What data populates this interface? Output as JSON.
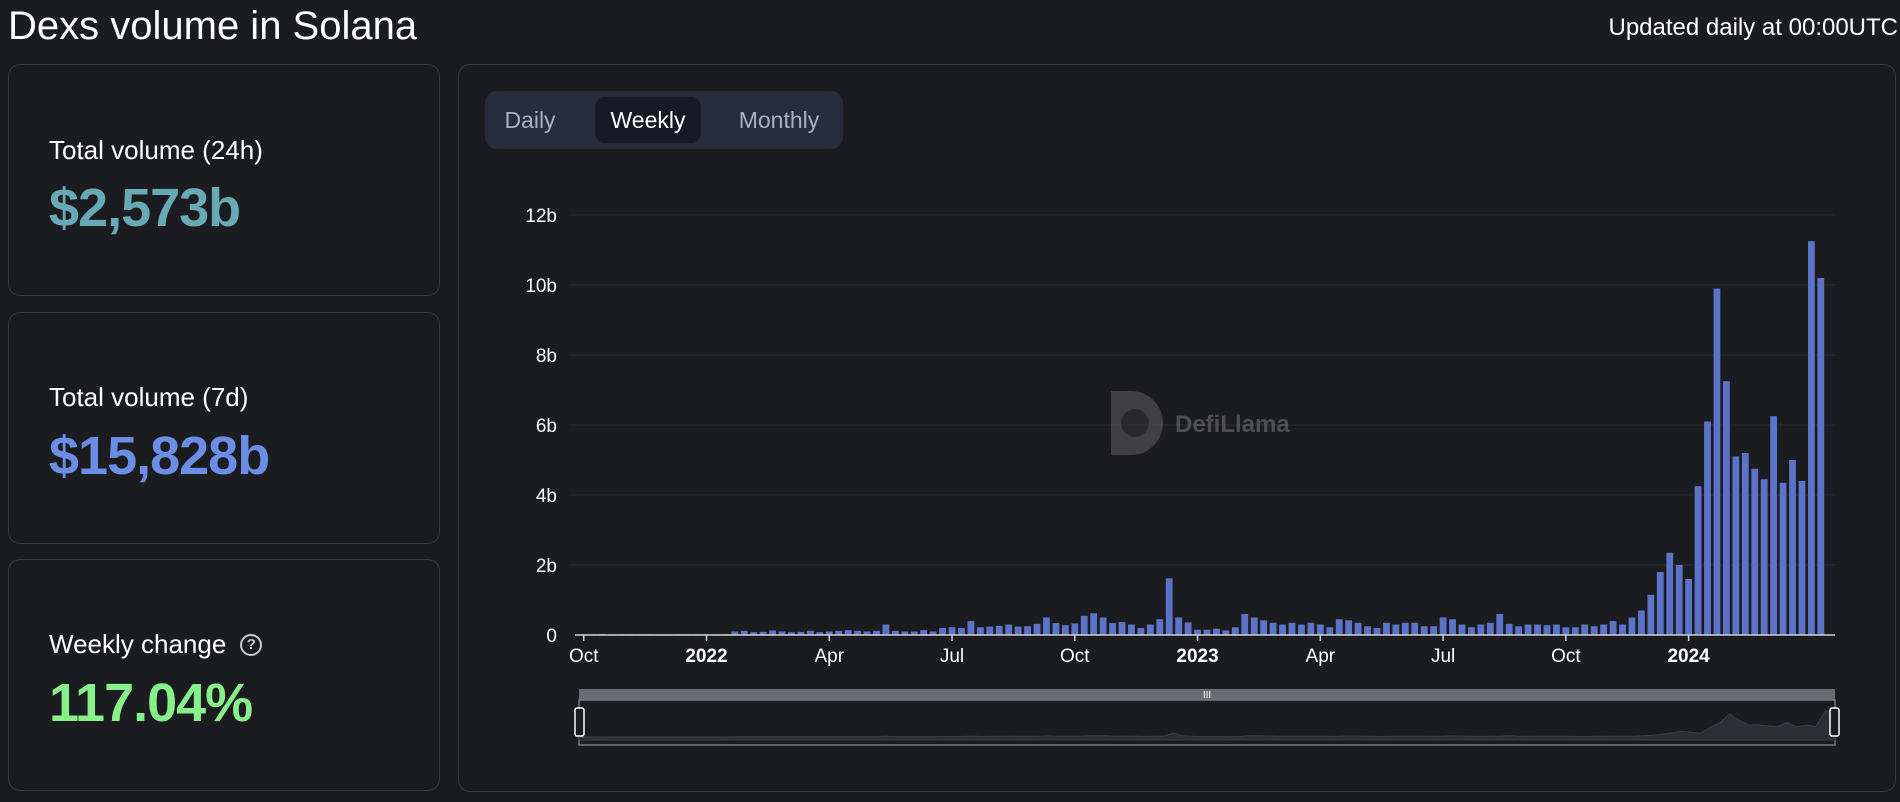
{
  "header": {
    "title": "Dexs volume in Solana",
    "updated": "Updated daily at 00:00UTC"
  },
  "stats": {
    "volume_24h": {
      "label": "Total volume (24h)",
      "value": "$2,573b",
      "color": "#67a9b4"
    },
    "volume_7d": {
      "label": "Total volume (7d)",
      "value": "$15,828b",
      "color": "#6a8ee6"
    },
    "weekly_change": {
      "label": "Weekly change",
      "value": "117.04%",
      "color": "#86f089",
      "help_icon": "question-circle-icon"
    }
  },
  "tabs": [
    {
      "label": "Daily",
      "active": false
    },
    {
      "label": "Weekly",
      "active": true
    },
    {
      "label": "Monthly",
      "active": false
    }
  ],
  "watermark": {
    "text": "DefiLlama",
    "icon": "llama-logo-icon"
  },
  "chart_data": {
    "type": "bar",
    "title": "",
    "xlabel": "",
    "ylabel": "",
    "y_unit": "b",
    "ylim": [
      0,
      12
    ],
    "y_ticks": [
      "0",
      "2b",
      "4b",
      "6b",
      "8b",
      "10b",
      "12b"
    ],
    "x_ticks": [
      {
        "label": "Oct",
        "bold": false,
        "index": 0
      },
      {
        "label": "2022",
        "bold": true,
        "index": 13
      },
      {
        "label": "Apr",
        "bold": false,
        "index": 26
      },
      {
        "label": "Jul",
        "bold": false,
        "index": 39
      },
      {
        "label": "Oct",
        "bold": false,
        "index": 52
      },
      {
        "label": "2023",
        "bold": true,
        "index": 65
      },
      {
        "label": "Apr",
        "bold": false,
        "index": 78
      },
      {
        "label": "Jul",
        "bold": false,
        "index": 91
      },
      {
        "label": "Oct",
        "bold": false,
        "index": 104
      },
      {
        "label": "2024",
        "bold": true,
        "index": 117
      }
    ],
    "grid": true,
    "bar_color": "#5d73c8",
    "series": [
      {
        "values": [
          0.02,
          0.02,
          0.03,
          0.02,
          0.02,
          0.02,
          0.02,
          0.02,
          0.02,
          0.02,
          0.02,
          0.02,
          0.02,
          0.02,
          0.02,
          0.02,
          0.1,
          0.12,
          0.08,
          0.09,
          0.13,
          0.1,
          0.08,
          0.09,
          0.12,
          0.08,
          0.1,
          0.12,
          0.14,
          0.12,
          0.1,
          0.12,
          0.3,
          0.12,
          0.1,
          0.1,
          0.14,
          0.1,
          0.2,
          0.22,
          0.2,
          0.4,
          0.22,
          0.24,
          0.26,
          0.3,
          0.24,
          0.25,
          0.32,
          0.5,
          0.34,
          0.28,
          0.33,
          0.55,
          0.62,
          0.5,
          0.34,
          0.37,
          0.3,
          0.2,
          0.3,
          0.45,
          1.62,
          0.5,
          0.36,
          0.15,
          0.15,
          0.18,
          0.13,
          0.22,
          0.6,
          0.5,
          0.42,
          0.35,
          0.3,
          0.35,
          0.3,
          0.35,
          0.3,
          0.22,
          0.45,
          0.42,
          0.35,
          0.25,
          0.2,
          0.35,
          0.3,
          0.35,
          0.35,
          0.25,
          0.25,
          0.5,
          0.45,
          0.3,
          0.22,
          0.3,
          0.35,
          0.6,
          0.32,
          0.25,
          0.3,
          0.3,
          0.28,
          0.3,
          0.22,
          0.22,
          0.3,
          0.25,
          0.3,
          0.4,
          0.3,
          0.5,
          0.7,
          1.15,
          1.8,
          2.35,
          2.0,
          1.6,
          4.25,
          6.1,
          9.9,
          7.25,
          5.1,
          5.2,
          4.75,
          4.45,
          6.25,
          4.35,
          5.0,
          4.4,
          11.25,
          10.2
        ]
      }
    ]
  }
}
